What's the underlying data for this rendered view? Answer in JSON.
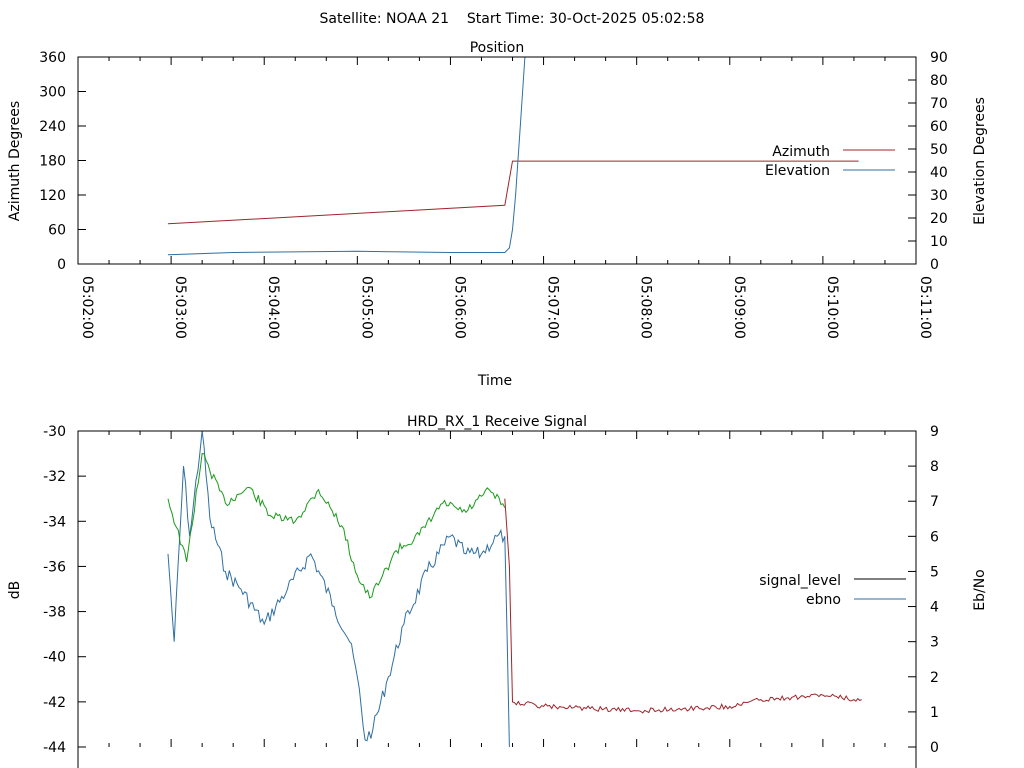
{
  "header": {
    "title": "Satellite: NOAA 21    Start Time: 30-Oct-2025 05:02:58"
  },
  "colors": {
    "azimuth": "#a0242b",
    "elevation": "#2f6fa3",
    "signal_level": "#000000",
    "ebno": "#2f6fa3",
    "green": "#1a9a1a",
    "red": "#a0242b"
  },
  "chart_data": [
    {
      "type": "line",
      "title": "Position",
      "xlabel": "Time",
      "ylabel": "Azimuth Degrees",
      "y2label": "Elevation Degrees",
      "xlim": [
        "05:02:00",
        "05:11:00"
      ],
      "ylim": [
        0,
        360
      ],
      "y2lim": [
        0,
        90
      ],
      "xticks": [
        "05:02:00",
        "05:03:00",
        "05:04:00",
        "05:05:00",
        "05:06:00",
        "05:07:00",
        "05:08:00",
        "05:09:00",
        "05:10:00",
        "05:11:00"
      ],
      "yticks": [
        0,
        60,
        120,
        180,
        240,
        300,
        360
      ],
      "y2ticks": [
        0,
        10,
        20,
        30,
        40,
        50,
        60,
        70,
        80,
        90
      ],
      "legend": "right",
      "series": [
        {
          "name": "Azimuth",
          "axis": "y",
          "x": [
            "05:02:58",
            "05:06:35",
            "05:06:40",
            "05:10:23"
          ],
          "values": [
            70,
            102,
            179,
            179
          ]
        },
        {
          "name": "Elevation",
          "axis": "y2",
          "x": [
            "05:02:58",
            "05:03:40",
            "05:05:00",
            "05:06:00",
            "05:06:35",
            "05:06:38",
            "05:06:40",
            "05:06:42",
            "05:06:45",
            "05:06:48"
          ],
          "values": [
            4,
            5,
            5.5,
            5,
            5,
            7,
            15,
            30,
            60,
            90
          ]
        }
      ]
    },
    {
      "type": "line",
      "title": "HRD_RX_1 Receive Signal",
      "ylabel": "dB",
      "y2label": "Eb/No",
      "xlim": [
        "05:02:00",
        "05:11:00"
      ],
      "ylim": [
        -44,
        -30
      ],
      "y2lim": [
        0,
        9
      ],
      "yticks": [
        -44,
        -42,
        -40,
        -38,
        -36,
        -34,
        -32,
        -30
      ],
      "y2ticks": [
        0,
        1,
        2,
        3,
        4,
        5,
        6,
        7,
        8,
        9
      ],
      "legend": "right",
      "series": [
        {
          "name": "signal_level",
          "axis": "y",
          "x": [
            "05:02:58",
            "05:03:05",
            "05:03:15",
            "05:03:30",
            "05:03:45",
            "05:04:00",
            "05:04:15",
            "05:04:30",
            "05:04:45",
            "05:05:00",
            "05:05:05",
            "05:05:10",
            "05:05:15",
            "05:05:25",
            "05:05:40",
            "05:06:00",
            "05:06:20",
            "05:06:35",
            "05:06:38",
            "05:06:40",
            "05:07:00",
            "05:07:30",
            "05:08:00",
            "05:08:30",
            "05:09:00",
            "05:09:20",
            "05:09:40",
            "05:10:00",
            "05:10:20",
            "05:10:25"
          ],
          "values": [
            -33.0,
            -35.5,
            -31.5,
            -33.0,
            -34.5,
            -33.5,
            -33.8,
            -32.8,
            -34.0,
            -36.5,
            -37.5,
            -37.8,
            -36.5,
            -35.2,
            -34.5,
            -32.8,
            -33.5,
            -33.0,
            -36.0,
            -42.0,
            -42.2,
            -42.3,
            -42.4,
            -42.3,
            -42.2,
            -41.9,
            -41.8,
            -41.7,
            -41.9,
            -41.9
          ]
        },
        {
          "name": "ebno",
          "axis": "y2",
          "x": [
            "05:02:58",
            "05:03:02",
            "05:03:08",
            "05:03:12",
            "05:03:20",
            "05:03:25",
            "05:03:35",
            "05:03:45",
            "05:04:00",
            "05:04:15",
            "05:04:30",
            "05:04:45",
            "05:04:55",
            "05:05:00",
            "05:05:05",
            "05:05:10",
            "05:05:20",
            "05:05:30",
            "05:05:45",
            "05:06:00",
            "05:06:10",
            "05:06:20",
            "05:06:30",
            "05:06:35",
            "05:06:38"
          ],
          "values": [
            5.5,
            3.0,
            8.0,
            6.0,
            9.0,
            6.5,
            5.0,
            4.5,
            3.5,
            4.5,
            5.5,
            4.0,
            3.0,
            2.0,
            0.2,
            0.5,
            2.0,
            3.5,
            5.0,
            6.0,
            5.5,
            5.5,
            6.0,
            6.0,
            0.0
          ]
        }
      ]
    }
  ],
  "legend_segments": {
    "signal_level_green": {
      "x": [
        "05:02:58",
        "05:03:10",
        "05:03:20",
        "05:03:35",
        "05:03:50",
        "05:04:05",
        "05:04:20",
        "05:04:35",
        "05:04:50",
        "05:05:00",
        "05:05:08",
        "05:05:15",
        "05:05:25",
        "05:05:40",
        "05:05:55",
        "05:06:10",
        "05:06:25",
        "05:06:35"
      ],
      "values": [
        -33.0,
        -35.8,
        -31.0,
        -33.2,
        -32.5,
        -33.8,
        -34.0,
        -32.6,
        -34.2,
        -36.4,
        -37.4,
        -36.6,
        -35.3,
        -34.6,
        -33.2,
        -33.6,
        -32.6,
        -33.4
      ]
    }
  }
}
